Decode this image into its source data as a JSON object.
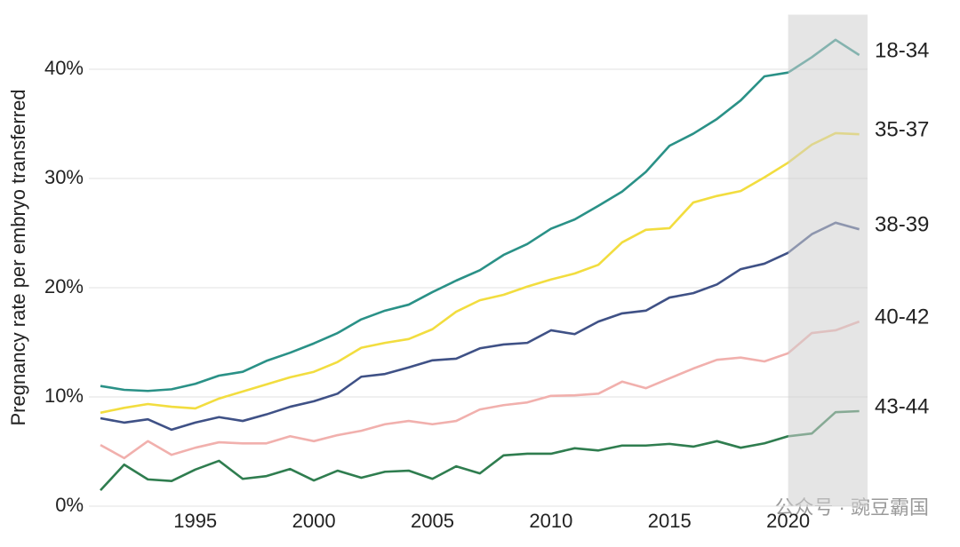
{
  "chart_data": {
    "type": "line",
    "y_axis_label": "Pregnancy rate per embryo transferred",
    "x": [
      1991,
      1992,
      1993,
      1994,
      1995,
      1996,
      1997,
      1998,
      1999,
      2000,
      2001,
      2002,
      2003,
      2004,
      2005,
      2006,
      2007,
      2008,
      2009,
      2010,
      2011,
      2012,
      2013,
      2014,
      2015,
      2016,
      2017,
      2018,
      2019,
      2020,
      2021,
      2022,
      2023
    ],
    "series": [
      {
        "name": "18-34",
        "color": "#2a9187",
        "values": [
          11.0,
          10.65,
          10.55,
          10.7,
          11.2,
          11.95,
          12.3,
          13.3,
          14.05,
          14.9,
          15.85,
          17.1,
          17.9,
          18.45,
          19.6,
          20.65,
          21.6,
          23.0,
          24.0,
          25.4,
          26.25,
          27.5,
          28.8,
          30.6,
          33.0,
          34.1,
          35.45,
          37.15,
          39.35,
          39.7,
          41.1,
          42.7,
          41.3
        ]
      },
      {
        "name": "35-37",
        "color": "#f2dd3f",
        "values": [
          8.55,
          9.0,
          9.35,
          9.1,
          8.95,
          9.85,
          10.5,
          11.15,
          11.8,
          12.3,
          13.2,
          14.5,
          14.95,
          15.3,
          16.2,
          17.8,
          18.85,
          19.35,
          20.1,
          20.75,
          21.3,
          22.1,
          24.15,
          25.3,
          25.45,
          27.8,
          28.4,
          28.85,
          30.1,
          31.45,
          33.1,
          34.15,
          34.05
        ]
      },
      {
        "name": "38-39",
        "color": "#3f5186",
        "values": [
          8.05,
          7.65,
          7.95,
          7.0,
          7.65,
          8.15,
          7.8,
          8.4,
          9.1,
          9.6,
          10.3,
          11.85,
          12.1,
          12.7,
          13.35,
          13.5,
          14.45,
          14.8,
          14.95,
          16.1,
          15.75,
          16.9,
          17.65,
          17.9,
          19.1,
          19.5,
          20.3,
          21.7,
          22.2,
          23.2,
          24.9,
          25.95,
          25.35
        ]
      },
      {
        "name": "40-42",
        "color": "#f1b0ad",
        "values": [
          5.6,
          4.4,
          5.95,
          4.7,
          5.35,
          5.85,
          5.75,
          5.75,
          6.4,
          5.95,
          6.5,
          6.9,
          7.5,
          7.8,
          7.5,
          7.8,
          8.85,
          9.25,
          9.5,
          10.1,
          10.15,
          10.3,
          11.4,
          10.8,
          11.7,
          12.6,
          13.4,
          13.6,
          13.25,
          14.0,
          15.85,
          16.1,
          16.9
        ]
      },
      {
        "name": "43-44",
        "color": "#2f7d4f",
        "values": [
          1.45,
          3.8,
          2.45,
          2.3,
          3.35,
          4.15,
          2.5,
          2.75,
          3.4,
          2.35,
          3.25,
          2.6,
          3.15,
          3.25,
          2.5,
          3.65,
          3.0,
          4.65,
          4.8,
          4.8,
          5.3,
          5.1,
          5.55,
          5.55,
          5.7,
          5.45,
          5.95,
          5.35,
          5.75,
          6.4,
          6.65,
          8.6,
          8.7
        ]
      }
    ],
    "xlim": [
      1990.85,
      2023.35
    ],
    "xticks": [
      1995,
      2000,
      2005,
      2010,
      2015,
      2020
    ],
    "ylim": [
      0,
      45
    ],
    "yticks": [
      {
        "value": 0,
        "label": "0%"
      },
      {
        "value": 10,
        "label": "10%"
      },
      {
        "value": 20,
        "label": "20%"
      },
      {
        "value": 30,
        "label": "30%"
      },
      {
        "value": 40,
        "label": "40%"
      }
    ],
    "grid": true,
    "highlight": {
      "from": 2020,
      "to": 2023.35,
      "color": "#d0d0d0"
    },
    "watermark": "公众号 · 豌豆霸国"
  }
}
